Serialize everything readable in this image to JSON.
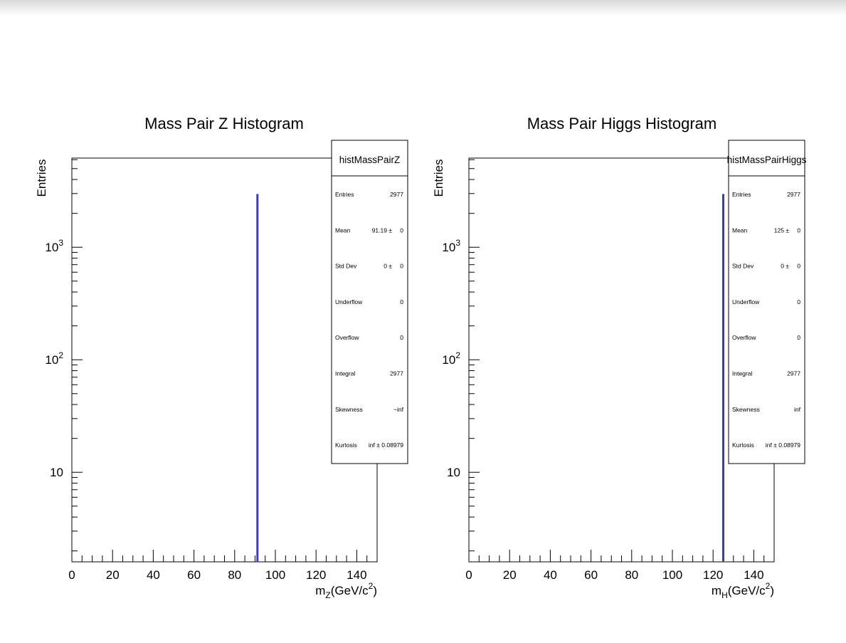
{
  "chart_data": [
    {
      "type": "bar",
      "title": "Mass Pair Z Histogram",
      "xlabel": {
        "base": "m",
        "sub": "Z",
        "rest": "(GeV/c",
        "sup": "2",
        "close": ")"
      },
      "ylabel": "Entries",
      "x_range": [
        0,
        150
      ],
      "y_scale": "log",
      "x_ticks": [
        0,
        20,
        40,
        60,
        80,
        100,
        120,
        140
      ],
      "y_tick_labels": [
        {
          "value": 10,
          "base": "10",
          "exp": ""
        },
        {
          "value": 100,
          "base": "10",
          "exp": "2"
        },
        {
          "value": 1000,
          "base": "10",
          "exp": "3"
        }
      ],
      "bins": [
        {
          "x": 91.19,
          "count": 2977
        }
      ],
      "bar_color": "#3a3cb0",
      "stats_box": {
        "name": "histMassPairZ",
        "rows": [
          {
            "label": "Entries",
            "value": "2977"
          },
          {
            "label": "Mean",
            "value": "91.19 ±",
            "error": "0"
          },
          {
            "label": "Std Dev",
            "value": "0 ±",
            "error": "0"
          },
          {
            "label": "Underflow",
            "value": "0"
          },
          {
            "label": "Overflow",
            "value": "0"
          },
          {
            "label": "Integral",
            "value": "2977"
          },
          {
            "label": "Skewness",
            "value": "−inf"
          },
          {
            "label": "Kurtosis",
            "value": "inf ± 0.08979"
          }
        ]
      }
    },
    {
      "type": "bar",
      "title": "Mass Pair Higgs Histogram",
      "xlabel": {
        "base": "m",
        "sub": "H",
        "rest": "(GeV/c",
        "sup": "2",
        "close": ")"
      },
      "ylabel": "Entries",
      "x_range": [
        0,
        150
      ],
      "y_scale": "log",
      "x_ticks": [
        0,
        20,
        40,
        60,
        80,
        100,
        120,
        140
      ],
      "y_tick_labels": [
        {
          "value": 10,
          "base": "10",
          "exp": ""
        },
        {
          "value": 100,
          "base": "10",
          "exp": "2"
        },
        {
          "value": 1000,
          "base": "10",
          "exp": "3"
        }
      ],
      "bins": [
        {
          "x": 125,
          "count": 2977
        }
      ],
      "bar_color": "#3a3cb0",
      "stats_box": {
        "name": "histMassPairHiggs",
        "rows": [
          {
            "label": "Entries",
            "value": "2977"
          },
          {
            "label": "Mean",
            "value": "125 ±",
            "error": "0"
          },
          {
            "label": "Std Dev",
            "value": "0 ±",
            "error": "0"
          },
          {
            "label": "Underflow",
            "value": "0"
          },
          {
            "label": "Overflow",
            "value": "0"
          },
          {
            "label": "Integral",
            "value": "2977"
          },
          {
            "label": "Skewness",
            "value": "inf"
          },
          {
            "label": "Kurtosis",
            "value": "inf ± 0.08979"
          }
        ]
      }
    }
  ]
}
